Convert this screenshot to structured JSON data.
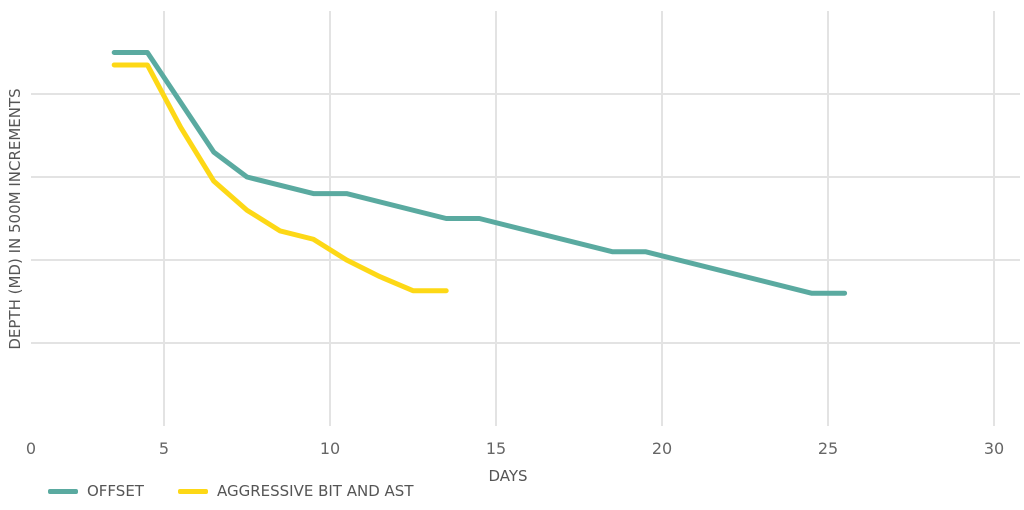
{
  "chart_data": {
    "type": "line",
    "title": "",
    "xlabel": "DAYS",
    "ylabel": "DEPTH (MD) IN 500M INCREMENTS",
    "xlim": [
      0,
      30
    ],
    "ylim": [
      0,
      5
    ],
    "x_ticks": [
      "0",
      "5",
      "10",
      "15",
      "20",
      "25",
      "30"
    ],
    "grid": true,
    "legend_position": "bottom-left",
    "series": [
      {
        "name": "OFFSET",
        "color": "#5aaaa0",
        "x": [
          3.5,
          4.5,
          6.5,
          7.5,
          9.5,
          10.5,
          13.5,
          14.5,
          18.5,
          19.5,
          24.5,
          25.5
        ],
        "y": [
          4.5,
          4.5,
          3.3,
          3.0,
          2.8,
          2.8,
          2.5,
          2.5,
          2.1,
          2.1,
          1.6,
          1.6
        ]
      },
      {
        "name": "AGGRESSIVE BIT AND AST",
        "color": "#fdd816",
        "x": [
          3.5,
          4.5,
          5.5,
          6.5,
          7.5,
          8.5,
          9.5,
          10.5,
          11.5,
          12.5,
          13.5
        ],
        "y": [
          4.35,
          4.35,
          3.6,
          2.95,
          2.6,
          2.35,
          2.25,
          2.0,
          1.8,
          1.63,
          1.63
        ]
      }
    ]
  }
}
